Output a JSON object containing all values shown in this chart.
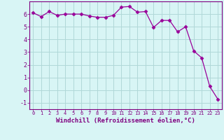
{
  "x": [
    0,
    1,
    2,
    3,
    4,
    5,
    6,
    7,
    8,
    9,
    10,
    11,
    12,
    13,
    14,
    15,
    16,
    17,
    18,
    19,
    20,
    21,
    22,
    23
  ],
  "y": [
    6.1,
    5.8,
    6.2,
    5.9,
    6.0,
    6.0,
    6.0,
    5.85,
    5.75,
    5.75,
    5.9,
    6.55,
    6.6,
    6.15,
    6.2,
    4.95,
    5.5,
    5.5,
    4.6,
    5.0,
    3.1,
    2.55,
    0.3,
    -0.7
  ],
  "line_color": "#990099",
  "marker": "D",
  "marker_size": 2.5,
  "bg_color": "#d8f5f5",
  "grid_color": "#b0d8d8",
  "xlabel": "Windchill (Refroidissement éolien,°C)",
  "xlim": [
    -0.5,
    23.5
  ],
  "ylim": [
    -1.5,
    7.0
  ],
  "yticks": [
    -1,
    0,
    1,
    2,
    3,
    4,
    5,
    6
  ],
  "xticks": [
    0,
    1,
    2,
    3,
    4,
    5,
    6,
    7,
    8,
    9,
    10,
    11,
    12,
    13,
    14,
    15,
    16,
    17,
    18,
    19,
    20,
    21,
    22,
    23
  ],
  "title_color": "#800080",
  "axis_color": "#800080",
  "font_family": "monospace",
  "xlabel_fontsize": 6.5,
  "xtick_fontsize": 5.0,
  "ytick_fontsize": 6.0
}
